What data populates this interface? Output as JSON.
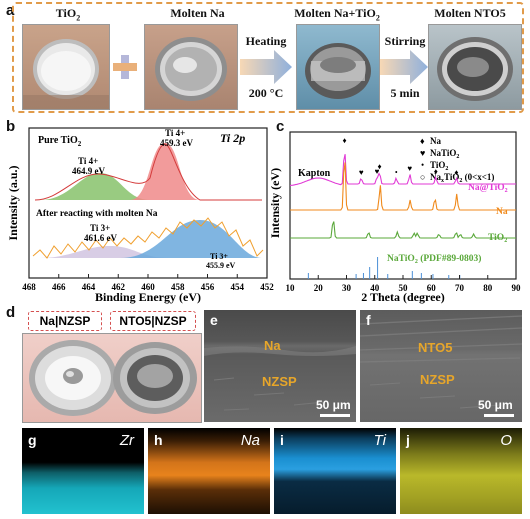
{
  "panel_a": {
    "label": "a",
    "titles": [
      "TiO",
      "Molten Na",
      "Molten Na+TiO",
      "Molten NTO5"
    ],
    "tio2_sub": "2",
    "step1_top": "Heating",
    "step1_bottom": "200 °C",
    "step2_top": "Stirring",
    "step2_bottom": "5 min"
  },
  "panel_b": {
    "label": "b",
    "ylabel": "Intensity (a.u.)",
    "xlabel": "Binding Energy (eV)",
    "corner": "Ti 2p",
    "pure_label": "Pure TiO",
    "after_label": "After reacting with molten Na",
    "ann": {
      "ti4_left": "Ti 4+",
      "ti4_left_ev": "464.9 eV",
      "ti4_right": "Ti 4+",
      "ti4_right_ev": "459.3 eV",
      "ti3_left": "Ti 3+",
      "ti3_left_ev": "461.6 eV",
      "ti3_right": "Ti 3+",
      "ti3_right_ev": "455.9 eV"
    },
    "xticks": [
      "468",
      "466",
      "464",
      "462",
      "460",
      "458",
      "456",
      "454",
      "452"
    ]
  },
  "panel_c": {
    "label": "c",
    "ylabel": "Intensity (eV)",
    "xlabel": "2 Theta (degree)",
    "xticks": [
      "10",
      "20",
      "30",
      "40",
      "50",
      "60",
      "70",
      "80",
      "90"
    ],
    "kapton": "Kapton",
    "legend": [
      "Na",
      "NaTiO",
      "TiO",
      "Na TiO (0<x<1)"
    ],
    "series_labels": [
      "Na@TiO",
      "Na",
      "TiO",
      "NaTiO (PDF#89-0803)"
    ]
  },
  "panel_d": {
    "label": "d",
    "left_tag": "Na|NZSP",
    "right_tag": "NTO5|NZSP"
  },
  "panel_e": {
    "label": "e",
    "top": "Na",
    "bottom": "NZSP",
    "scale": "50 μm"
  },
  "panel_f": {
    "label": "f",
    "top": "NTO5",
    "bottom": "NZSP",
    "scale": "50 μm"
  },
  "maps": [
    {
      "letter": "g",
      "element": "Zr",
      "color": "#19b5c7"
    },
    {
      "letter": "h",
      "element": "Na",
      "color": "#e8831c"
    },
    {
      "letter": "i",
      "element": "Ti",
      "color": "#1a8fd0"
    },
    {
      "letter": "j",
      "element": "O",
      "color": "#b9b82a"
    }
  ],
  "chart_data": [
    {
      "type": "line",
      "panel": "b",
      "xlabel": "Binding Energy (eV)",
      "ylabel": "Intensity (a.u.)",
      "xlim": [
        468,
        452
      ],
      "series": [
        {
          "name": "Pure TiO2",
          "peaks": [
            {
              "label": "Ti4+",
              "x": 464.9
            },
            {
              "label": "Ti4+",
              "x": 459.3
            }
          ]
        },
        {
          "name": "After reacting with molten Na",
          "peaks": [
            {
              "label": "Ti3+",
              "x": 461.6
            },
            {
              "label": "Ti3+",
              "x": 455.9
            }
          ]
        }
      ]
    },
    {
      "type": "line",
      "panel": "c",
      "xlabel": "2 Theta (degree)",
      "ylabel": "Intensity (eV)",
      "xlim": [
        10,
        90
      ],
      "series": [
        {
          "name": "Na@TiO2",
          "color": "#e13ad6",
          "peaks": [
            29.3,
            35.2,
            40.8,
            41.7,
            47.6,
            52.4,
            61.6,
            68.9
          ]
        },
        {
          "name": "Na",
          "color": "#f08a1c",
          "peaks": [
            29.3,
            41.9,
            52.5,
            61.3,
            69.0
          ]
        },
        {
          "name": "TiO2",
          "color": "#5aa83a",
          "peaks": [
            25.3,
            37.8,
            48.0,
            53.9,
            55.1,
            62.7,
            68.8,
            70.3,
            75.0
          ]
        },
        {
          "name": "NaTiO2 (PDF#89-0803)",
          "color": "#4b8fd6",
          "sticks": [
            16.5,
            33.4,
            36.0,
            38.2,
            41.0,
            44.6,
            53.3,
            56.5,
            60.6,
            66.2,
            70.1
          ]
        }
      ]
    }
  ]
}
